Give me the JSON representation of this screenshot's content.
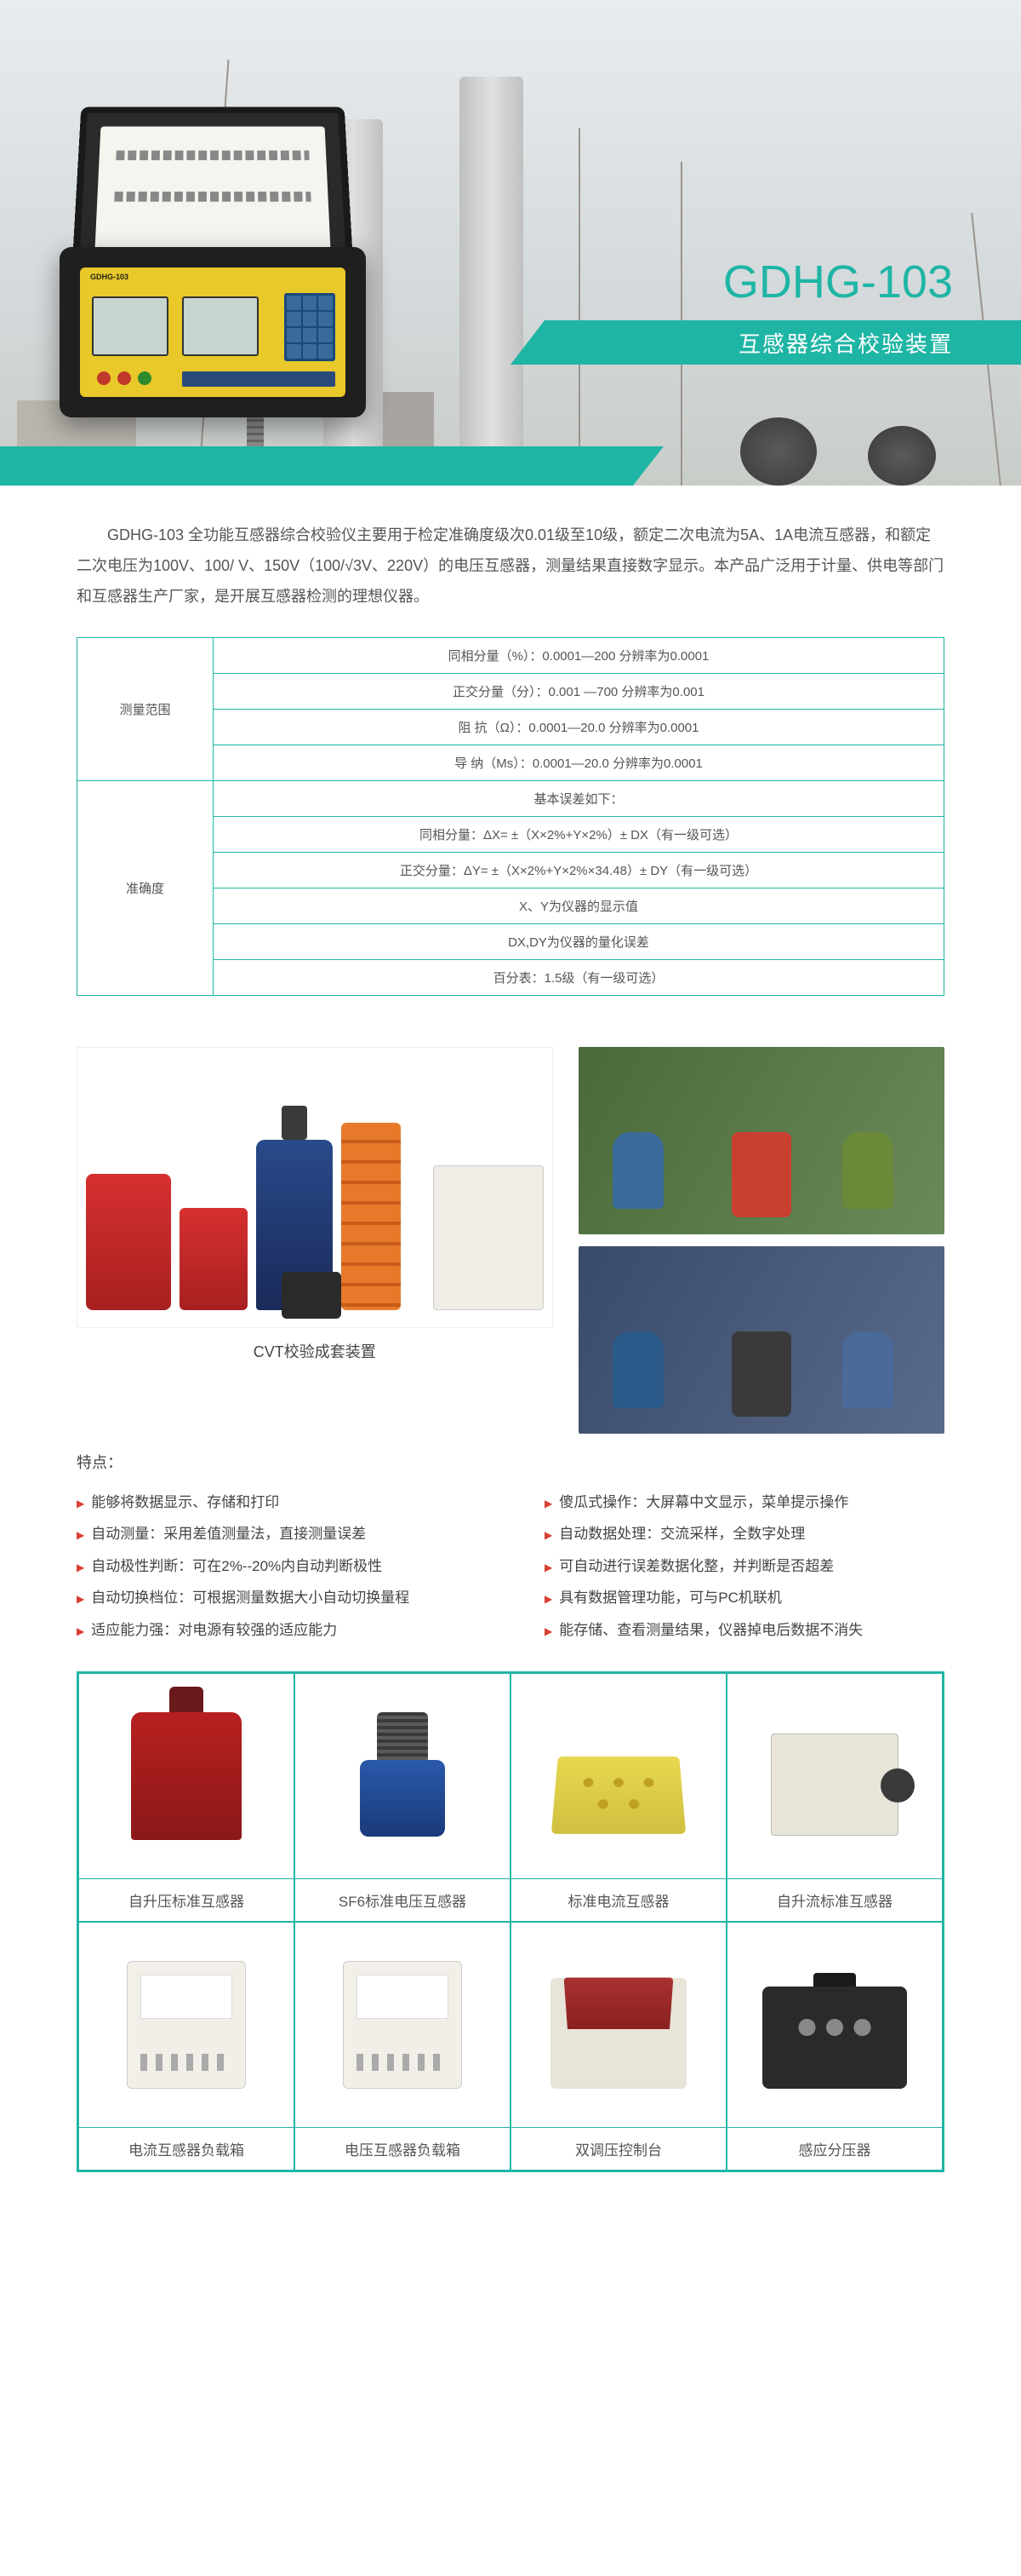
{
  "colors": {
    "teal": "#1fb5a5",
    "bullet": "#d84030",
    "text": "#555555"
  },
  "hero": {
    "model": "GDHG-103",
    "subtitle": "互感器综合校验装置",
    "device_label": "GDHG-103"
  },
  "intro": "GDHG-103 全功能互感器综合校验仪主要用于检定准确度级次0.01级至10级，额定二次电流为5A、1A电流互感器，和额定二次电压为100V、100/ V、150V（100/√3V、220V）的电压互感器，测量结果直接数字显示。本产品广泛用于计量、供电等部门和互感器生产厂家，是开展互感器检测的理想仪器。",
  "spec": {
    "sections": [
      {
        "header": "测量范围",
        "rows": [
          "同相分量（%）：0.0001—200 分辨率为0.0001",
          "正交分量（分）：0.001 —700 分辨率为0.001",
          "阻 抗（Ω）：0.0001—20.0 分辨率为0.0001",
          "导 纳（Ms）：0.0001—20.0 分辨率为0.0001"
        ]
      },
      {
        "header": "准确度",
        "rows": [
          "基本误差如下：",
          "同相分量：ΔX= ±（X×2%+Y×2%）± DX（有一级可选）",
          "正交分量：ΔY= ±（X×2%+Y×2%×34.48）± DY（有一级可选）",
          "X、Y为仪器的显示值",
          "DX,DY为仪器的量化误差",
          "百分表：1.5级（有一级可选）"
        ]
      }
    ]
  },
  "gallery": {
    "caption": "CVT校验成套装置"
  },
  "features": {
    "title": "特点：",
    "left": [
      "能够将数据显示、存储和打印",
      "自动测量：采用差值测量法，直接测量误差",
      "自动极性判断：可在2%--20%内自动判断极性",
      "自动切换档位：可根据测量数据大小自动切换量程",
      "适应能力强：对电源有较强的适应能力"
    ],
    "right": [
      "傻瓜式操作：大屏幕中文显示，菜单提示操作",
      "自动数据处理：交流采样，全数字处理",
      "可自动进行误差数据化整，并判断是否超差",
      "具有数据管理功能，可与PC机联机",
      "能存储、查看测量结果，仪器掉电后数据不消失"
    ]
  },
  "products": [
    {
      "name": "自升压标准互感器",
      "shape": "ps-red-trans"
    },
    {
      "name": "SF6标准电压互感器",
      "shape": "ps-sf6"
    },
    {
      "name": "标准电流互感器",
      "shape": "ps-yellow-box"
    },
    {
      "name": "自升流标准互感器",
      "shape": "ps-cream-box"
    },
    {
      "name": "电流互感器负载箱",
      "shape": "ps-white-panel"
    },
    {
      "name": "电压互感器负载箱",
      "shape": "ps-white-panel"
    },
    {
      "name": "双调压控制台",
      "shape": "ps-console"
    },
    {
      "name": "感应分压器",
      "shape": "ps-case"
    }
  ]
}
